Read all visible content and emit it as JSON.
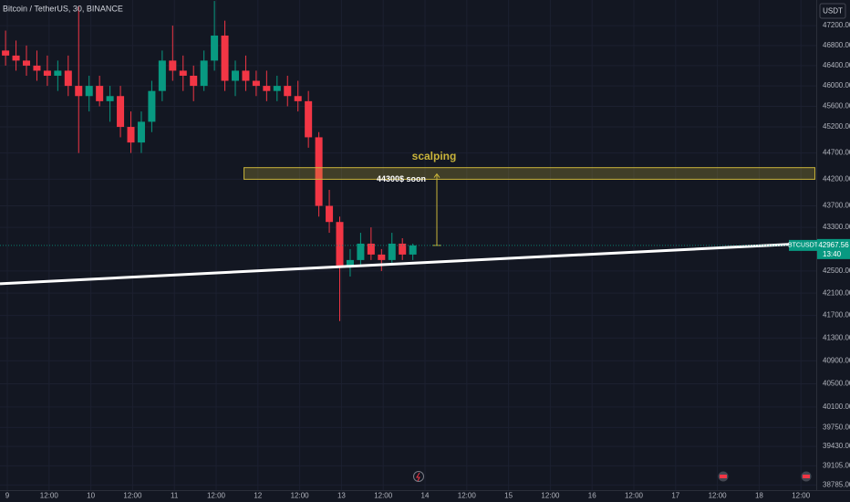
{
  "chart_data": {
    "type": "candlestick",
    "title": "Bitcoin / TetherUS, 30, BINANCE",
    "currency": "USDT",
    "log_scale": true,
    "grid": true,
    "up_color": "#089981",
    "down_color": "#f23645",
    "x": [
      -0.5,
      2.5,
      5.5,
      8.5,
      11.5,
      14.5,
      17.5,
      20.5,
      23.5,
      26.5,
      29.5,
      32.5,
      35.5,
      38.5,
      41.5,
      44.5,
      47.5,
      50.5,
      53.5,
      56.5,
      59.5,
      62.5,
      65.5,
      68.5,
      71.5,
      74.5,
      77.5,
      80.5,
      83.5,
      86.5,
      89.5,
      92.5,
      95.5,
      98.5,
      101.5,
      104.5,
      107.5,
      110.5,
      113.5,
      116.5
    ],
    "open": [
      46700,
      46600,
      46500,
      46400,
      46300,
      46200,
      46300,
      46000,
      45800,
      46000,
      45700,
      45800,
      45200,
      44900,
      45300,
      45900,
      46500,
      46300,
      46200,
      46000,
      46500,
      47000,
      46100,
      46300,
      46100,
      46000,
      45900,
      46000,
      45800,
      45700,
      45000,
      43700,
      43400,
      42600,
      42700,
      43000,
      42800,
      42700,
      43000,
      42800
    ],
    "high": [
      47100,
      46900,
      46800,
      46700,
      46600,
      46500,
      46600,
      47600,
      46200,
      46200,
      46000,
      46000,
      45500,
      45500,
      46100,
      46700,
      47200,
      46600,
      46400,
      46700,
      47700,
      47300,
      46500,
      46600,
      46300,
      46300,
      46200,
      46200,
      46100,
      45900,
      45100,
      44000,
      43500,
      42900,
      43200,
      43300,
      42900,
      43200,
      43100,
      43000
    ],
    "low": [
      46400,
      46300,
      46200,
      46100,
      46000,
      45900,
      45800,
      44700,
      45500,
      45600,
      45300,
      45000,
      44700,
      44700,
      45100,
      45700,
      46100,
      45900,
      45700,
      45900,
      46300,
      45900,
      45800,
      45900,
      45800,
      45700,
      45700,
      45600,
      45500,
      44800,
      43500,
      43200,
      41600,
      42400,
      42600,
      42700,
      42500,
      42600,
      42700,
      42700
    ],
    "close": [
      46600,
      46500,
      46400,
      46300,
      46200,
      46300,
      46000,
      45800,
      46000,
      45700,
      45800,
      45200,
      44900,
      45300,
      45900,
      46500,
      46300,
      46200,
      46000,
      46500,
      47000,
      46100,
      46300,
      46100,
      46000,
      45900,
      46000,
      45800,
      45700,
      45000,
      43700,
      43400,
      42600,
      42700,
      43000,
      42800,
      42700,
      43000,
      42800,
      42967.56
    ],
    "xlim": [
      -2.1,
      232.4
    ],
    "xticks": [
      {
        "value": 0,
        "label": "9"
      },
      {
        "value": 12,
        "label": "12:00"
      },
      {
        "value": 24,
        "label": "10"
      },
      {
        "value": 36,
        "label": "12:00"
      },
      {
        "value": 48,
        "label": "11"
      },
      {
        "value": 60,
        "label": "12:00"
      },
      {
        "value": 72,
        "label": "12"
      },
      {
        "value": 84,
        "label": "12:00"
      },
      {
        "value": 96,
        "label": "13"
      },
      {
        "value": 108,
        "label": "12:00"
      },
      {
        "value": 120,
        "label": "14"
      },
      {
        "value": 132,
        "label": "12:00"
      },
      {
        "value": 144,
        "label": "15"
      },
      {
        "value": 156,
        "label": "12:00"
      },
      {
        "value": 168,
        "label": "16"
      },
      {
        "value": 180,
        "label": "12:00"
      },
      {
        "value": 192,
        "label": "17"
      },
      {
        "value": 204,
        "label": "12:00"
      },
      {
        "value": 216,
        "label": "18"
      },
      {
        "value": 228,
        "label": "12:00"
      }
    ],
    "ylim": [
      38700,
      47720
    ],
    "yticks": [
      {
        "value": 47200,
        "label": "47200.00"
      },
      {
        "value": 46800,
        "label": "46800.00"
      },
      {
        "value": 46400,
        "label": "46400.00"
      },
      {
        "value": 46000,
        "label": "46000.00"
      },
      {
        "value": 45600,
        "label": "45600.00"
      },
      {
        "value": 45200,
        "label": "45200.00"
      },
      {
        "value": 44700,
        "label": "44700.00"
      },
      {
        "value": 44200,
        "label": "44200.00"
      },
      {
        "value": 43700,
        "label": "43700.00"
      },
      {
        "value": 43300,
        "label": "43300.00"
      },
      {
        "value": 42500,
        "label": "42500.00"
      },
      {
        "value": 42100,
        "label": "42100.00"
      },
      {
        "value": 41700,
        "label": "41700.00"
      },
      {
        "value": 41300,
        "label": "41300.00"
      },
      {
        "value": 40900,
        "label": "40900.00"
      },
      {
        "value": 40500,
        "label": "40500.00"
      },
      {
        "value": 40100,
        "label": "40100.00"
      },
      {
        "value": 39750,
        "label": "39750.00"
      },
      {
        "value": 39430,
        "label": "39430.00"
      },
      {
        "value": 39105,
        "label": "39105.00"
      },
      {
        "value": 38785,
        "label": "38785.00"
      }
    ],
    "zone": {
      "label": "scalping",
      "x": [
        68,
        232
      ],
      "y": [
        44200,
        44420
      ],
      "color": "#c9b43a"
    },
    "arrow": {
      "label": "44300$ soon",
      "x": 123.4,
      "from": 42967.56,
      "to": 44300,
      "color": "#c9b43a"
    },
    "trendline": {
      "x": [
        -2.1,
        231.9
      ],
      "values": [
        42270,
        43010
      ],
      "color": "#ffffff"
    },
    "last_price": {
      "symbol": "BTCUSDT",
      "value": 42967.56,
      "label": "42967.56",
      "countdown": "13:40",
      "color": "#089981"
    }
  }
}
